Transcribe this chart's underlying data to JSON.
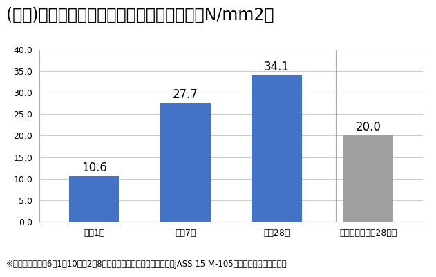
{
  "title": "(表２)フィットレベラー品質試験（圧縮強度N/mm2）",
  "categories": [
    "材龄1日",
    "材龄7日",
    "材龄28日",
    "品質基準（材龄28日）"
  ],
  "values": [
    10.6,
    27.7,
    34.1,
    20.0
  ],
  "bar_colors": [
    "#4472C4",
    "#4472C4",
    "#4472C4",
    "#A0A0A0"
  ],
  "ylim": [
    0,
    40.0
  ],
  "yticks": [
    0.0,
    5.0,
    10.0,
    15.0,
    20.0,
    25.0,
    30.0,
    35.0,
    40.0
  ],
  "footnote": "※試験期間：令和6年1月10日～2月8日セルフレベリング材の品質基準JASS 15 M-105に従って試験を行った。",
  "title_fontsize": 17,
  "label_fontsize": 12,
  "tick_fontsize": 9,
  "footnote_fontsize": 8.5,
  "background_color": "#FFFFFF",
  "grid_color": "#CCCCCC",
  "bar_width": 0.55
}
